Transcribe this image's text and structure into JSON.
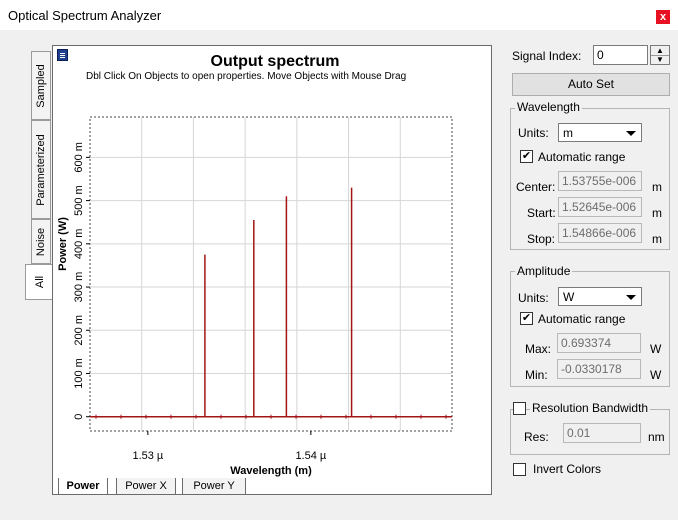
{
  "window": {
    "title": "Optical Spectrum Analyzer",
    "close_glyph": "x"
  },
  "side_tabs": [
    "Sampled",
    "Parameterized",
    "Noise",
    "All"
  ],
  "plot": {
    "title": "Output spectrum",
    "hint": "Dbl Click On Objects to open properties.  Move Objects with Mouse Drag",
    "bottom_tabs": [
      "Power",
      "Power X",
      "Power Y"
    ]
  },
  "chart_data": {
    "type": "bar",
    "xlabel": "Wavelength (m)",
    "ylabel": "Power (W)",
    "x_ticks": [
      "1.53 µ",
      "1.54 µ"
    ],
    "x_tick_values": [
      1.53e-06,
      1.54e-06
    ],
    "y_ticks": [
      "0",
      "100 m",
      "200 m",
      "300 m",
      "400 m",
      "500 m",
      "600 m"
    ],
    "y_tick_values": [
      0,
      0.1,
      0.2,
      0.3,
      0.4,
      0.5,
      0.6
    ],
    "xlim": [
      1.52645e-06,
      1.54866e-06
    ],
    "ylim": [
      -0.0330178,
      0.693374
    ],
    "grid": true,
    "series": [
      {
        "x": [
          1.5335e-06,
          1.5365e-06,
          1.5385e-06,
          1.5425e-06
        ],
        "values": [
          0.375,
          0.455,
          0.51,
          0.53
        ]
      }
    ],
    "color": "#a31515"
  },
  "controls": {
    "signal_index_label": "Signal Index:",
    "signal_index_value": "0",
    "auto_set": "Auto Set",
    "wavelength": {
      "group_label": "Wavelength",
      "units_label": "Units:",
      "units_value": "m",
      "auto_range_label": "Automatic range",
      "auto_range_checked": "✔",
      "center_label": "Center:",
      "center_value": "1.53755e-006",
      "center_unit": "m",
      "start_label": "Start:",
      "start_value": "1.52645e-006",
      "start_unit": "m",
      "stop_label": "Stop:",
      "stop_value": "1.54866e-006",
      "stop_unit": "m"
    },
    "amplitude": {
      "group_label": "Amplitude",
      "units_label": "Units:",
      "units_value": "W",
      "auto_range_label": "Automatic range",
      "auto_range_checked": "✔",
      "max_label": "Max:",
      "max_value": "0.693374",
      "max_unit": "W",
      "min_label": "Min:",
      "min_value": "-0.0330178",
      "min_unit": "W"
    },
    "resolution": {
      "group_label": "Resolution Bandwidth",
      "res_label": "Res:",
      "res_value": "0.01",
      "res_unit": "nm"
    },
    "invert_colors_label": "Invert Colors"
  },
  "colors": {
    "close": "#e81123",
    "trace": "#a31515"
  }
}
